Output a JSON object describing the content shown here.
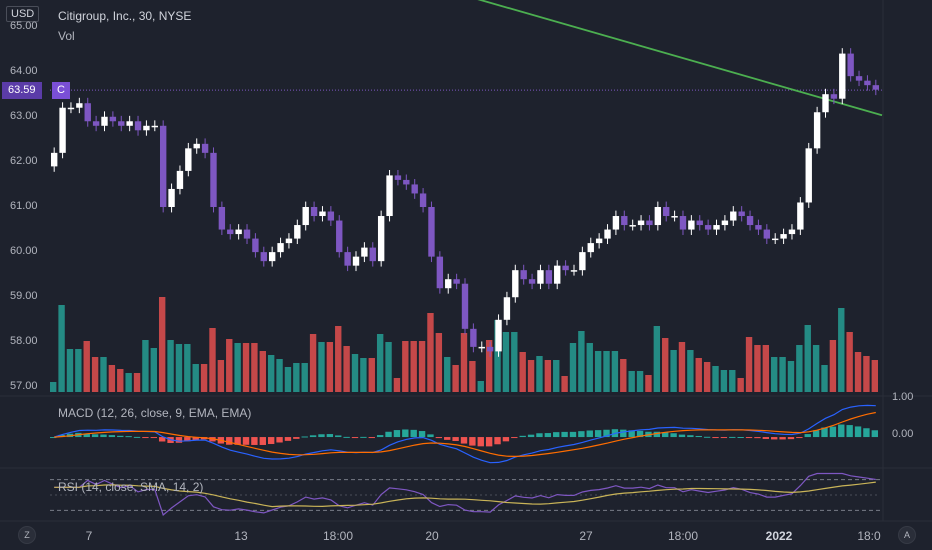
{
  "header": {
    "currency": "USD",
    "title": "Citigroup, Inc., 30, NYSE",
    "vol_label": "Vol"
  },
  "price_axis": {
    "ticks": [
      "65.00",
      "64.00",
      "63.00",
      "62.00",
      "61.00",
      "60.00",
      "59.00",
      "58.00",
      "57.00"
    ],
    "last_price": "63.59",
    "symbol_badge": "C"
  },
  "macd": {
    "label": "MACD (12, 26, close, 9, EMA, EMA)",
    "ticks": [
      "1.00",
      "0.00"
    ]
  },
  "rsi": {
    "label": "RSI (14, close, SMA, 14, 2)"
  },
  "time_axis": {
    "labels": [
      "7",
      "13",
      "18:00",
      "20",
      "27",
      "18:00",
      "2022",
      "18:0"
    ],
    "bold_label": "2022"
  },
  "buttons": {
    "left": "Z",
    "right": "A"
  },
  "colors": {
    "background": "#1e222d",
    "candle_up": "#ffffff",
    "candle_down": "#7e57c2",
    "vol_up": "#26a69a",
    "vol_down": "#ef5350",
    "trendline": "#4caf50",
    "macd_line": "#2962ff",
    "signal_line": "#ff6d00",
    "rsi_line": "#7e57c2",
    "rsi_ma": "#c9b458",
    "price_line": "#7e57c2"
  },
  "chart_data": {
    "type": "candlestick",
    "symbol": "Citigroup, Inc.",
    "exchange": "NYSE",
    "interval": "30",
    "y_range": [
      56.9,
      65.1
    ],
    "last_price": 63.59,
    "closes": [
      62.2,
      63.2,
      63.2,
      63.3,
      62.9,
      62.8,
      63.0,
      62.9,
      62.8,
      62.9,
      62.7,
      62.8,
      62.8,
      61.0,
      61.4,
      61.8,
      62.3,
      62.4,
      62.2,
      61.0,
      60.5,
      60.4,
      60.5,
      60.3,
      60.0,
      59.8,
      60.0,
      60.2,
      60.3,
      60.6,
      61.0,
      60.8,
      60.9,
      60.7,
      60.0,
      59.7,
      59.9,
      60.1,
      59.8,
      60.8,
      61.7,
      61.6,
      61.5,
      61.3,
      61.0,
      59.9,
      59.2,
      59.4,
      59.3,
      58.3,
      57.9,
      57.9,
      57.8,
      58.5,
      59.0,
      59.6,
      59.4,
      59.3,
      59.6,
      59.3,
      59.7,
      59.6,
      59.6,
      60.0,
      60.2,
      60.3,
      60.5,
      60.8,
      60.6,
      60.6,
      60.7,
      60.6,
      61.0,
      60.8,
      60.8,
      60.5,
      60.7,
      60.6,
      60.5,
      60.6,
      60.7,
      60.9,
      60.8,
      60.6,
      60.5,
      60.3,
      60.3,
      60.4,
      60.5,
      61.1,
      62.3,
      63.1,
      63.5,
      63.4,
      64.4,
      63.9,
      63.8,
      63.7,
      63.6
    ],
    "volume_max_label": "",
    "trendline": {
      "from": [
        0,
        66.0
      ],
      "to": [
        98,
        63.3
      ]
    },
    "macd_range": [
      -0.8,
      1.1
    ],
    "rsi_range": [
      20,
      80
    ]
  }
}
